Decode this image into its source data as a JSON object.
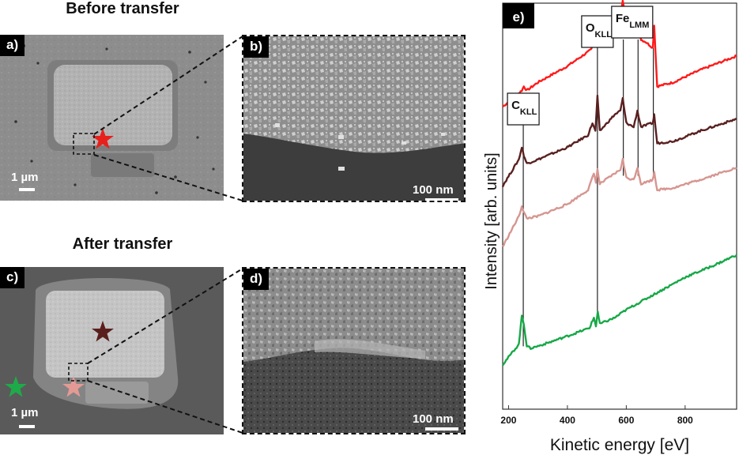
{
  "left": {
    "heading_before": "Before transfer",
    "heading_after": "After transfer",
    "panel_a": {
      "label": "a)",
      "scale": "1 µm"
    },
    "panel_b": {
      "label": "b)",
      "scale": "100 nm"
    },
    "panel_c": {
      "label": "c)",
      "scale": "1 µm"
    },
    "panel_d": {
      "label": "d)",
      "scale": "100 nm"
    },
    "colors": {
      "star_red": "#e8201c",
      "star_dark": "#5a1f1c",
      "star_pink": "#e39a95",
      "star_green": "#1faa4a"
    }
  },
  "chart_data": {
    "type": "line",
    "panel_label": "e)",
    "xlabel": "Kinetic energy  [eV]",
    "ylabel": "Intensity [arb. units]",
    "xlim": [
      180,
      975
    ],
    "ylim": [
      0,
      10
    ],
    "xticks": [
      200,
      400,
      600,
      800
    ],
    "peaks": [
      {
        "name": "C",
        "sub": "KLL",
        "energy": 250
      },
      {
        "name": "O",
        "sub": "KLL",
        "energy": 502
      },
      {
        "name": "Fe",
        "sub": "LMM",
        "energy": 590
      },
      {
        "name": "Fe",
        "sub": "LMM",
        "energy": 640
      },
      {
        "name": "Fe",
        "sub": "LMM",
        "energy": 692
      }
    ],
    "series": [
      {
        "name": "red spectrum",
        "color": "#ff1a1a",
        "x": [
          180,
          230,
          245,
          252,
          262,
          300,
          400,
          480,
          495,
          500,
          510,
          560,
          580,
          588,
          600,
          625,
          640,
          650,
          665,
          690,
          695,
          705,
          760,
          850,
          975
        ],
        "y": [
          7.45,
          7.75,
          7.85,
          7.95,
          7.85,
          8.05,
          8.45,
          8.85,
          9.05,
          9.3,
          9.1,
          9.55,
          9.75,
          10.05,
          9.55,
          9.3,
          9.85,
          9.1,
          9.05,
          8.9,
          9.45,
          7.95,
          8.05,
          8.35,
          8.7
        ]
      },
      {
        "name": "dark red spectrum",
        "color": "#5a2020",
        "x": [
          180,
          235,
          245,
          252,
          262,
          300,
          400,
          470,
          485,
          495,
          502,
          510,
          560,
          580,
          588,
          600,
          625,
          638,
          650,
          670,
          690,
          695,
          705,
          760,
          850,
          975
        ],
        "y": [
          5.5,
          6.15,
          6.45,
          6.25,
          6.05,
          6.15,
          6.45,
          6.75,
          7.05,
          6.85,
          7.7,
          6.85,
          7.25,
          7.35,
          7.65,
          7.05,
          6.95,
          7.35,
          6.95,
          7.0,
          7.05,
          7.25,
          6.55,
          6.6,
          6.85,
          7.15
        ]
      },
      {
        "name": "pink spectrum",
        "color": "#d69690",
        "x": [
          180,
          235,
          245,
          252,
          262,
          300,
          400,
          470,
          490,
          497,
          502,
          510,
          560,
          580,
          588,
          600,
          625,
          638,
          650,
          670,
          690,
          695,
          705,
          760,
          850,
          975
        ],
        "y": [
          4.0,
          4.75,
          5.0,
          4.85,
          4.7,
          4.75,
          5.05,
          5.4,
          5.8,
          5.6,
          5.9,
          5.55,
          5.8,
          5.9,
          6.15,
          5.7,
          5.65,
          5.95,
          5.55,
          5.6,
          5.65,
          5.85,
          5.4,
          5.45,
          5.65,
          5.95
        ]
      },
      {
        "name": "green spectrum",
        "color": "#17a847",
        "x": [
          180,
          235,
          245,
          252,
          262,
          275,
          320,
          400,
          475,
          490,
          497,
          503,
          510,
          560,
          600,
          700,
          800,
          900,
          975
        ],
        "y": [
          1.1,
          1.6,
          2.3,
          2.1,
          1.55,
          1.5,
          1.6,
          1.8,
          2.0,
          2.25,
          2.05,
          2.4,
          2.1,
          2.25,
          2.45,
          2.85,
          3.25,
          3.55,
          3.8
        ]
      }
    ]
  }
}
